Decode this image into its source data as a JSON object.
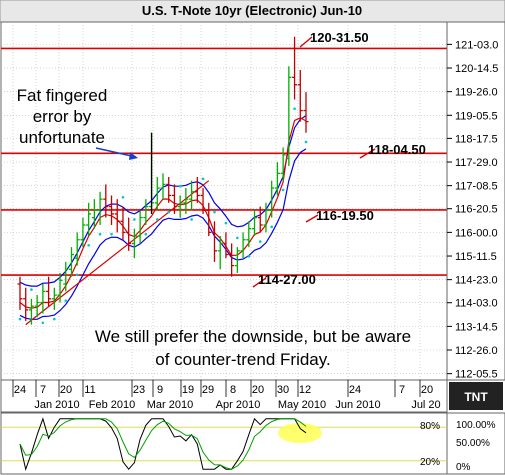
{
  "chart_data": {
    "type": "candlestick",
    "title": "U.S. T-Note 10yr (Electronic) Jun-10",
    "y_ticks": [
      "121-03.0",
      "120-14.5",
      "119-26.0",
      "119-05.5",
      "118-17.5",
      "117-29.0",
      "117-08.5",
      "116-20.5",
      "116-00.0",
      "115-11.5",
      "114-23.0",
      "114-03.0",
      "113-14.5",
      "112-26.0",
      "112-05.5"
    ],
    "y_tick_values": [
      121.094,
      120.453,
      119.813,
      119.172,
      118.547,
      117.906,
      117.266,
      116.641,
      116.0,
      115.359,
      114.719,
      114.094,
      113.453,
      112.813,
      112.172
    ],
    "ylim": [
      112.0,
      121.7
    ],
    "x_day_labels": [
      "24",
      "7",
      "20",
      "11",
      "23",
      "9",
      "19",
      "29",
      "8",
      "20",
      "30",
      "12",
      "24",
      "7",
      "20"
    ],
    "x_month_labels": [
      "Jan 2010",
      "Feb 2010",
      "Mar 2010",
      "Apr 2010",
      "May 2010",
      "Jun 2010",
      "Jul 20"
    ],
    "levels": [
      {
        "label": "120-31.50",
        "value": 120.984
      },
      {
        "label": "118-04.50",
        "value": 118.141
      },
      {
        "label": "116-19.50",
        "value": 116.609
      },
      {
        "label": "114-27.00",
        "value": 114.844
      }
    ],
    "annotations": {
      "fat_finger": [
        "Fat fingered",
        "error by",
        "unfortunate"
      ],
      "note": [
        "We still prefer the downside, but be aware",
        "of counter-trend Friday."
      ]
    },
    "oscillator": {
      "labels": [
        "100.00%",
        "50.00%",
        "0%"
      ],
      "level_labels": [
        "80%",
        "20%"
      ]
    },
    "series": [
      {
        "name": "bars",
        "values": [
          {
            "o": 114.6,
            "h": 114.8,
            "l": 113.9,
            "c": 114.2
          },
          {
            "o": 114.2,
            "h": 114.5,
            "l": 113.6,
            "c": 113.9
          },
          {
            "o": 113.9,
            "h": 114.2,
            "l": 113.5,
            "c": 114.0
          },
          {
            "o": 114.0,
            "h": 114.3,
            "l": 113.7,
            "c": 114.1
          },
          {
            "o": 114.1,
            "h": 114.6,
            "l": 113.8,
            "c": 114.4
          },
          {
            "o": 114.4,
            "h": 114.8,
            "l": 114.0,
            "c": 114.2
          },
          {
            "o": 114.2,
            "h": 114.5,
            "l": 113.9,
            "c": 114.3
          },
          {
            "o": 114.3,
            "h": 114.9,
            "l": 114.1,
            "c": 114.7
          },
          {
            "o": 114.6,
            "h": 115.2,
            "l": 114.4,
            "c": 115.0
          },
          {
            "o": 115.0,
            "h": 115.6,
            "l": 114.8,
            "c": 115.4
          },
          {
            "o": 115.3,
            "h": 116.0,
            "l": 115.1,
            "c": 115.8
          },
          {
            "o": 115.8,
            "h": 116.4,
            "l": 115.6,
            "c": 116.2
          },
          {
            "o": 116.2,
            "h": 116.8,
            "l": 115.9,
            "c": 116.5
          },
          {
            "o": 116.4,
            "h": 116.9,
            "l": 116.1,
            "c": 116.6
          },
          {
            "o": 116.6,
            "h": 117.1,
            "l": 116.2,
            "c": 116.9
          },
          {
            "o": 116.9,
            "h": 117.3,
            "l": 116.4,
            "c": 116.7
          },
          {
            "o": 116.7,
            "h": 117.0,
            "l": 116.2,
            "c": 116.5
          },
          {
            "o": 116.5,
            "h": 116.9,
            "l": 116.0,
            "c": 116.3
          },
          {
            "o": 116.3,
            "h": 116.7,
            "l": 115.8,
            "c": 116.0
          },
          {
            "o": 116.0,
            "h": 116.4,
            "l": 115.5,
            "c": 115.7
          },
          {
            "o": 115.7,
            "h": 116.1,
            "l": 115.3,
            "c": 115.9
          },
          {
            "o": 115.9,
            "h": 116.6,
            "l": 115.7,
            "c": 116.4
          },
          {
            "o": 116.4,
            "h": 116.9,
            "l": 116.2,
            "c": 116.7
          },
          {
            "o": 116.7,
            "h": 118.7,
            "l": 116.5,
            "c": 116.8
          },
          {
            "o": 116.8,
            "h": 117.5,
            "l": 116.6,
            "c": 117.2
          },
          {
            "o": 117.2,
            "h": 117.6,
            "l": 116.9,
            "c": 117.3
          },
          {
            "o": 117.3,
            "h": 117.5,
            "l": 116.8,
            "c": 117.0
          },
          {
            "o": 117.0,
            "h": 117.3,
            "l": 116.5,
            "c": 116.7
          },
          {
            "o": 116.7,
            "h": 117.0,
            "l": 116.4,
            "c": 116.8
          },
          {
            "o": 116.8,
            "h": 117.2,
            "l": 116.5,
            "c": 116.9
          },
          {
            "o": 116.9,
            "h": 117.4,
            "l": 116.6,
            "c": 117.1
          },
          {
            "o": 117.1,
            "h": 117.5,
            "l": 116.8,
            "c": 117.0
          },
          {
            "o": 117.0,
            "h": 117.2,
            "l": 116.5,
            "c": 116.6
          },
          {
            "o": 116.6,
            "h": 116.8,
            "l": 115.9,
            "c": 116.0
          },
          {
            "o": 116.0,
            "h": 116.3,
            "l": 115.2,
            "c": 115.5
          },
          {
            "o": 115.5,
            "h": 115.9,
            "l": 115.0,
            "c": 115.7
          },
          {
            "o": 115.7,
            "h": 116.0,
            "l": 115.3,
            "c": 115.4
          },
          {
            "o": 115.4,
            "h": 115.7,
            "l": 114.8,
            "c": 115.1
          },
          {
            "o": 115.1,
            "h": 115.6,
            "l": 114.9,
            "c": 115.5
          },
          {
            "o": 115.5,
            "h": 116.0,
            "l": 115.3,
            "c": 115.8
          },
          {
            "o": 115.8,
            "h": 116.3,
            "l": 115.6,
            "c": 116.1
          },
          {
            "o": 116.1,
            "h": 116.6,
            "l": 115.9,
            "c": 116.4
          },
          {
            "o": 116.4,
            "h": 116.7,
            "l": 116.0,
            "c": 116.2
          },
          {
            "o": 116.2,
            "h": 116.8,
            "l": 116.0,
            "c": 116.6
          },
          {
            "o": 116.6,
            "h": 117.4,
            "l": 116.4,
            "c": 117.2
          },
          {
            "o": 117.2,
            "h": 117.9,
            "l": 117.0,
            "c": 117.6
          },
          {
            "o": 117.6,
            "h": 118.3,
            "l": 117.4,
            "c": 118.1
          },
          {
            "o": 118.0,
            "h": 120.5,
            "l": 117.8,
            "c": 120.2
          },
          {
            "o": 120.2,
            "h": 121.3,
            "l": 119.6,
            "c": 120.0
          },
          {
            "o": 120.0,
            "h": 120.4,
            "l": 119.0,
            "c": 119.3
          },
          {
            "o": 119.3,
            "h": 119.8,
            "l": 118.7,
            "c": 119.0
          }
        ]
      }
    ],
    "colors": {
      "up": "#00b000",
      "down": "#c00000",
      "level_line": "#dd0000",
      "ma_blue": "#0000ee",
      "ma_red": "#dd0000",
      "dots": "#00c8c8",
      "highlight": "#ffff55"
    }
  }
}
